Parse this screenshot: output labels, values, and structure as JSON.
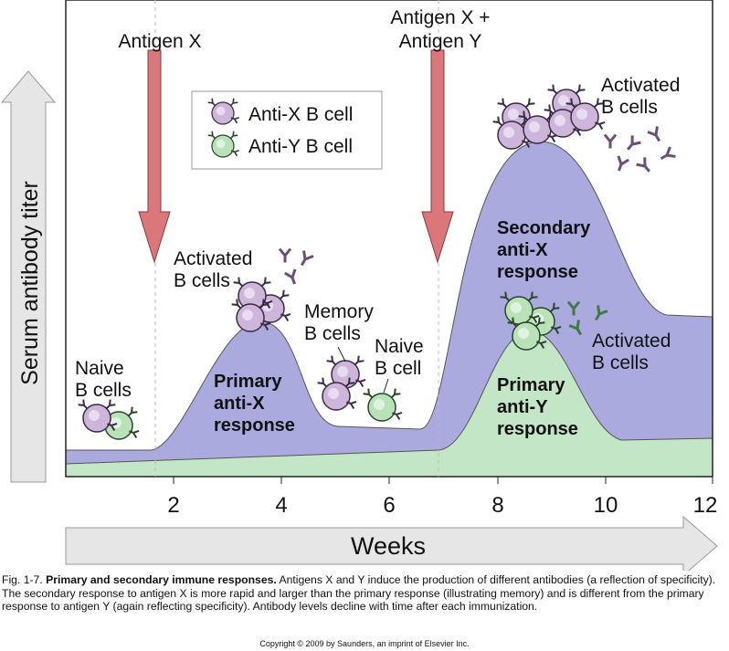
{
  "labels": {
    "antigen_x": "Antigen X",
    "antigen_xy": [
      "Antigen X +",
      "Antigen Y"
    ],
    "naive_cells": [
      "Naive",
      "B cells"
    ],
    "activated_primary": [
      "Activated",
      "B cells"
    ],
    "memory_cells": [
      "Memory",
      "B cells"
    ],
    "naive_cell": [
      "Naive",
      "B cell"
    ],
    "activated_secondary": [
      "Activated",
      "B cells"
    ],
    "activated_y": [
      "Activated",
      "B cells"
    ],
    "primary_x": [
      "Primary",
      "anti-X",
      "response"
    ],
    "secondary_x": [
      "Secondary",
      "anti-X",
      "response"
    ],
    "primary_y": [
      "Primary",
      "anti-Y",
      "response"
    ]
  },
  "legend": [
    "Anti-X B cell",
    "Anti-Y B cell"
  ],
  "y_axis_label": "Serum antibody titer",
  "x_axis_label": "Weeks",
  "x_ticks": [
    "2",
    "4",
    "6",
    "8",
    "10",
    "12"
  ],
  "caption": {
    "figure": "Fig. 1-7.",
    "title": "Primary and secondary immune responses.",
    "text": "Antigens X and Y induce the production of different antibodies (a reflection of specificity). The secondary response to antigen X is more rapid and larger than the primary response (illustrating memory) and is different from the primary response to antigen Y (again reflecting specificity). Antibody levels decline with time after each immunization."
  },
  "copyright": "Copyright © 2009 by Saunders, an imprint of Elsevier Inc."
}
